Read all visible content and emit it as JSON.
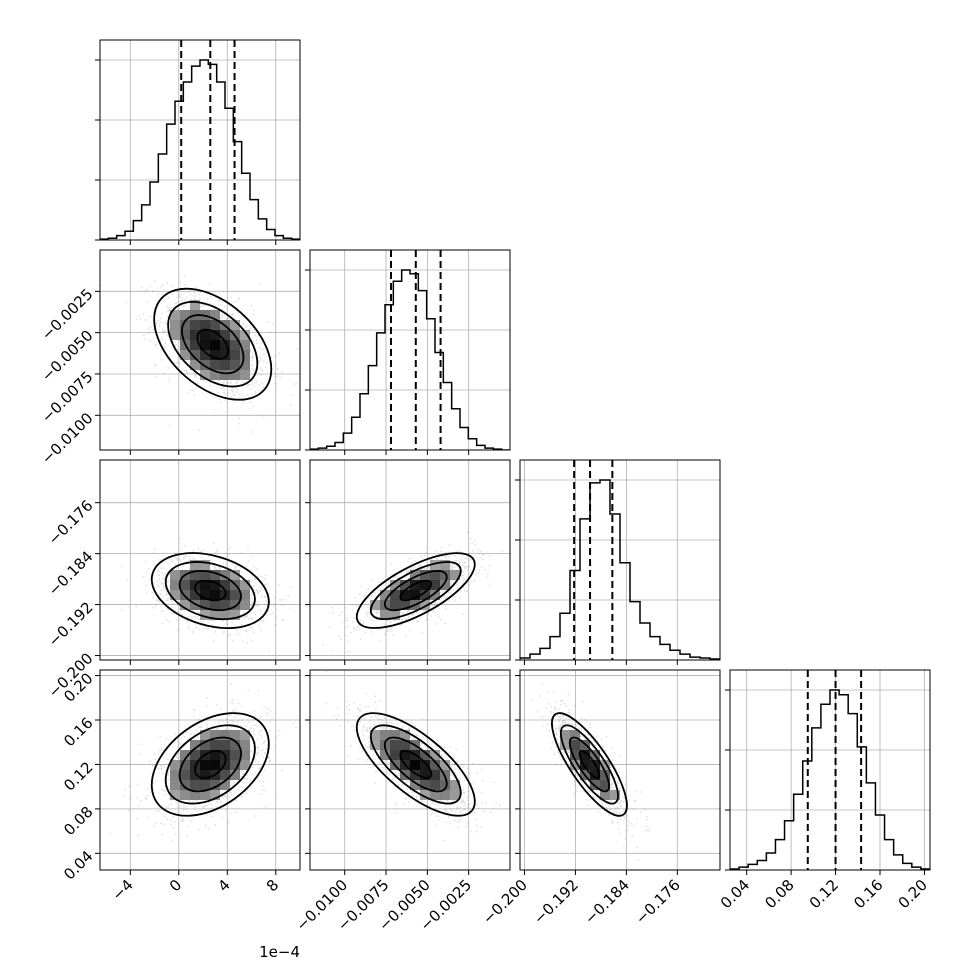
{
  "chart_data": {
    "type": "corner",
    "parameters": [
      {
        "ticks": [
          -4,
          0,
          4,
          8
        ],
        "tick_labels": [
          "−4",
          "0",
          "4",
          "8"
        ],
        "range": [
          -6.5,
          10.0
        ],
        "offset_label": "1e−4",
        "hist_counts": [
          1,
          2,
          5,
          10,
          22,
          40,
          66,
          98,
          132,
          158,
          180,
          198,
          205,
          200,
          180,
          150,
          112,
          76,
          46,
          24,
          12,
          5,
          2,
          1
        ],
        "quantiles": [
          0.2,
          2.6,
          4.6
        ]
      },
      {
        "ticks": [
          -0.01,
          -0.0075,
          -0.005,
          -0.0025
        ],
        "tick_labels": [
          "−0.0100",
          "−0.0075",
          "−0.0050",
          "−0.0025"
        ],
        "range": [
          -0.0121,
          0.0
        ],
        "hist_counts": [
          1,
          2,
          4,
          8,
          18,
          35,
          60,
          90,
          125,
          155,
          180,
          192,
          188,
          170,
          140,
          104,
          72,
          44,
          24,
          12,
          5,
          2,
          1,
          0
        ],
        "quantiles": [
          -0.0072,
          -0.0057,
          -0.0042
        ]
      },
      {
        "ticks": [
          -0.2,
          -0.192,
          -0.184,
          -0.176
        ],
        "tick_labels": [
          "−0.200",
          "−0.192",
          "−0.184",
          "−0.176"
        ],
        "range": [
          -0.2007,
          -0.1693
        ],
        "hist_counts": [
          2,
          6,
          12,
          24,
          48,
          92,
          145,
          182,
          185,
          150,
          100,
          60,
          38,
          24,
          16,
          10,
          6,
          3,
          2,
          1
        ],
        "quantiles": [
          -0.1922,
          -0.1897,
          -0.1862
        ]
      },
      {
        "ticks": [
          0.04,
          0.08,
          0.12,
          0.16,
          0.2
        ],
        "tick_labels": [
          "0.04",
          "0.08",
          "0.12",
          "0.16",
          "0.20"
        ],
        "range": [
          0.025,
          0.205
        ],
        "hist_counts": [
          1,
          3,
          6,
          10,
          18,
          32,
          52,
          80,
          115,
          150,
          175,
          190,
          185,
          165,
          130,
          92,
          58,
          32,
          16,
          7,
          3,
          1
        ],
        "quantiles": [
          0.095,
          0.12,
          0.143
        ]
      }
    ],
    "ylabel_tick_labels": {
      "row1": [
        "−0.0025",
        "−0.0050",
        "−0.0075",
        "−0.0100"
      ],
      "row2": [
        "−0.176",
        "−0.184",
        "−0.192",
        "−0.200"
      ],
      "row3": [
        "0.20",
        "0.16",
        "0.12",
        "0.08",
        "0.04"
      ]
    },
    "correlations": {
      "1-0": {
        "mean": [
          2.8,
          -0.0057
        ],
        "sd": [
          2.3,
          0.0016
        ],
        "rho": -0.45
      },
      "2-0": {
        "mean": [
          2.6,
          -0.1898
        ],
        "sd": [
          2.3,
          0.0028
        ],
        "rho": -0.3
      },
      "2-1": {
        "mean": [
          -0.0057,
          -0.1898
        ],
        "sd": [
          0.0017,
          0.0028
        ],
        "rho": 0.7
      },
      "3-0": {
        "mean": [
          2.6,
          0.12
        ],
        "sd": [
          2.3,
          0.022
        ],
        "rho": 0.4
      },
      "3-1": {
        "mean": [
          -0.0057,
          0.12
        ],
        "sd": [
          0.0017,
          0.022
        ],
        "rho": -0.72
      },
      "3-2": {
        "mean": [
          -0.1898,
          0.12
        ],
        "sd": [
          0.0028,
          0.022
        ],
        "rho": -0.8
      }
    },
    "grid": true
  }
}
